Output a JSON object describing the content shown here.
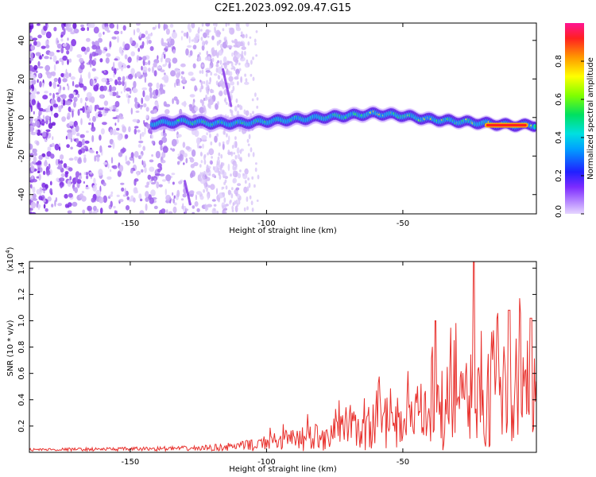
{
  "title": "C2E1.2023.092.09.47.G15",
  "colors": {
    "snr_line": "#e8302c",
    "background_dots": "#8a2be2",
    "axis": "#000000"
  },
  "chart_data": [
    {
      "type": "heatmap",
      "xlabel": "Height of straight line (km)",
      "ylabel": "Frequency (Hz)",
      "xlim": [
        -187,
        -1
      ],
      "ylim": [
        -50,
        49
      ],
      "x_ticks": [
        -150,
        -100,
        -50
      ],
      "y_ticks": [
        -40,
        -20,
        0,
        20,
        40
      ],
      "colorbar": {
        "label": "Normalized spectral amplitude",
        "range": [
          0.0,
          1.0
        ],
        "ticks": [
          "0.0",
          "0.2",
          "0.4",
          "0.6",
          "0.8"
        ],
        "tick_values": [
          0.0,
          0.2,
          0.4,
          0.6,
          0.8
        ],
        "colormap": "rainbow (violet to red)"
      },
      "ridge": {
        "description": "dominant frequency band",
        "x": [
          -140,
          -130,
          -120,
          -110,
          -100,
          -90,
          -80,
          -70,
          -60,
          -50,
          -40,
          -30,
          -20,
          -10,
          -1
        ],
        "y": [
          -3,
          -2,
          -3,
          -3,
          -2,
          -1,
          0,
          1,
          2,
          1,
          -1,
          -2,
          -3,
          -4,
          -4
        ]
      }
    },
    {
      "type": "line",
      "xlabel": "Height of straight line (km)",
      "ylabel": "SNR (10 * v/v)",
      "y_multiplier": "(x10",
      "y_multiplier_exp": "4",
      "xlim": [
        -187,
        -1
      ],
      "ylim": [
        0,
        1.45
      ],
      "x_ticks": [
        -150,
        -100,
        -50
      ],
      "y_ticks": [
        "0.2",
        "0.4",
        "0.6",
        "0.8",
        "1.0",
        "1.2",
        "1.4"
      ],
      "y_tick_values": [
        0.2,
        0.4,
        0.6,
        0.8,
        1.0,
        1.2,
        1.4
      ],
      "envelope": {
        "x": [
          -187,
          -150,
          -125,
          -110,
          -100,
          -90,
          -80,
          -70,
          -60,
          -50,
          -40,
          -30,
          -20,
          -10,
          -1
        ],
        "y": [
          0.02,
          0.03,
          0.04,
          0.07,
          0.12,
          0.18,
          0.22,
          0.3,
          0.38,
          0.45,
          0.55,
          0.7,
          0.78,
          0.85,
          0.9
        ]
      },
      "peaks": [
        {
          "x": -38,
          "y": 1.0
        },
        {
          "x": -24,
          "y": 1.45
        },
        {
          "x": -11,
          "y": 1.08
        },
        {
          "x": -3,
          "y": 1.02
        }
      ]
    }
  ]
}
